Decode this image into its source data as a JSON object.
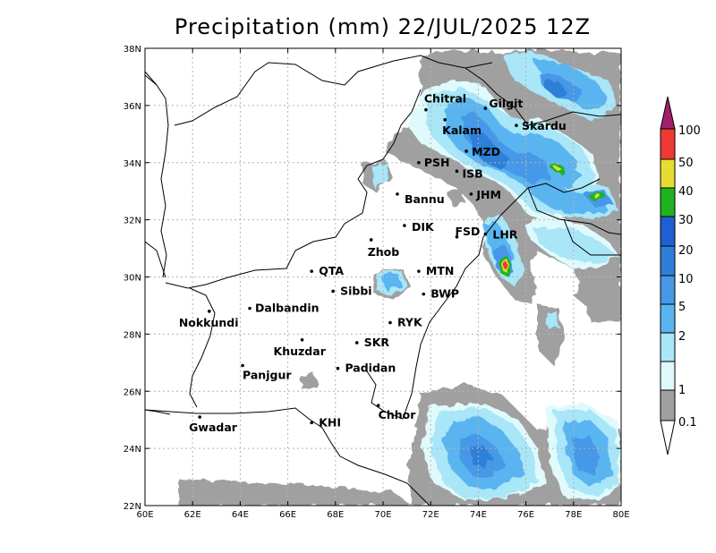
{
  "title": "Precipitation (mm) 22/JUL/2025 12Z",
  "axes": {
    "lon_ticks": [
      "60E",
      "62E",
      "64E",
      "66E",
      "68E",
      "70E",
      "72E",
      "74E",
      "76E",
      "78E",
      "80E"
    ],
    "lat_ticks": [
      "38N",
      "36N",
      "34N",
      "32N",
      "30N",
      "28N",
      "26N",
      "24N",
      "22N"
    ]
  },
  "colorbar": {
    "labels": [
      "100",
      "50",
      "40",
      "30",
      "20",
      "10",
      "5",
      "2",
      "1",
      "0.1"
    ],
    "colors": {
      "over": "#a0206e",
      "c50_100": "#ee3a32",
      "c40_50": "#e6dc32",
      "c30_40": "#1fb41f",
      "c20_30": "#1e5fd2",
      "c10_20": "#2f7fd8",
      "c5_10": "#4698e6",
      "c2_5": "#5ab4f0",
      "c1_2": "#a8e6f8",
      "c01_1": "#e0fafc",
      "under_gray": "#a0a0a0",
      "under": "#ffffff"
    }
  },
  "cities": [
    {
      "name": "Chitral",
      "lon": 71.8,
      "lat": 35.85
    },
    {
      "name": "Gilgit",
      "lon": 74.3,
      "lat": 35.9
    },
    {
      "name": "Kalam",
      "lon": 72.6,
      "lat": 35.5
    },
    {
      "name": "Skardu",
      "lon": 75.6,
      "lat": 35.3
    },
    {
      "name": "MZD",
      "lon": 73.5,
      "lat": 34.4
    },
    {
      "name": "PSH",
      "lon": 71.5,
      "lat": 34.0
    },
    {
      "name": "ISB",
      "lon": 73.1,
      "lat": 33.7
    },
    {
      "name": "JHM",
      "lon": 73.7,
      "lat": 32.9
    },
    {
      "name": "Bannu",
      "lon": 70.6,
      "lat": 32.9
    },
    {
      "name": "DIK",
      "lon": 70.9,
      "lat": 31.8
    },
    {
      "name": "FSD",
      "lon": 73.1,
      "lat": 31.4
    },
    {
      "name": "LHR",
      "lon": 74.3,
      "lat": 31.5
    },
    {
      "name": "Zhob",
      "lon": 69.5,
      "lat": 31.3
    },
    {
      "name": "QTA",
      "lon": 67.0,
      "lat": 30.2
    },
    {
      "name": "MTN",
      "lon": 71.5,
      "lat": 30.2
    },
    {
      "name": "Sibbi",
      "lon": 67.9,
      "lat": 29.5
    },
    {
      "name": "BWP",
      "lon": 71.7,
      "lat": 29.4
    },
    {
      "name": "Dalbandin",
      "lon": 64.4,
      "lat": 28.9
    },
    {
      "name": "Nokkundi",
      "lon": 62.7,
      "lat": 28.8
    },
    {
      "name": "RYK",
      "lon": 70.3,
      "lat": 28.4
    },
    {
      "name": "Khuzdar",
      "lon": 66.6,
      "lat": 27.8
    },
    {
      "name": "SKR",
      "lon": 68.9,
      "lat": 27.7
    },
    {
      "name": "Panjgur",
      "lon": 64.1,
      "lat": 26.9
    },
    {
      "name": "Padidan",
      "lon": 68.1,
      "lat": 26.8
    },
    {
      "name": "Chhor",
      "lon": 69.8,
      "lat": 25.5
    },
    {
      "name": "KHI",
      "lon": 67.0,
      "lat": 24.9
    },
    {
      "name": "Gwadar",
      "lon": 62.3,
      "lat": 25.1
    }
  ]
}
